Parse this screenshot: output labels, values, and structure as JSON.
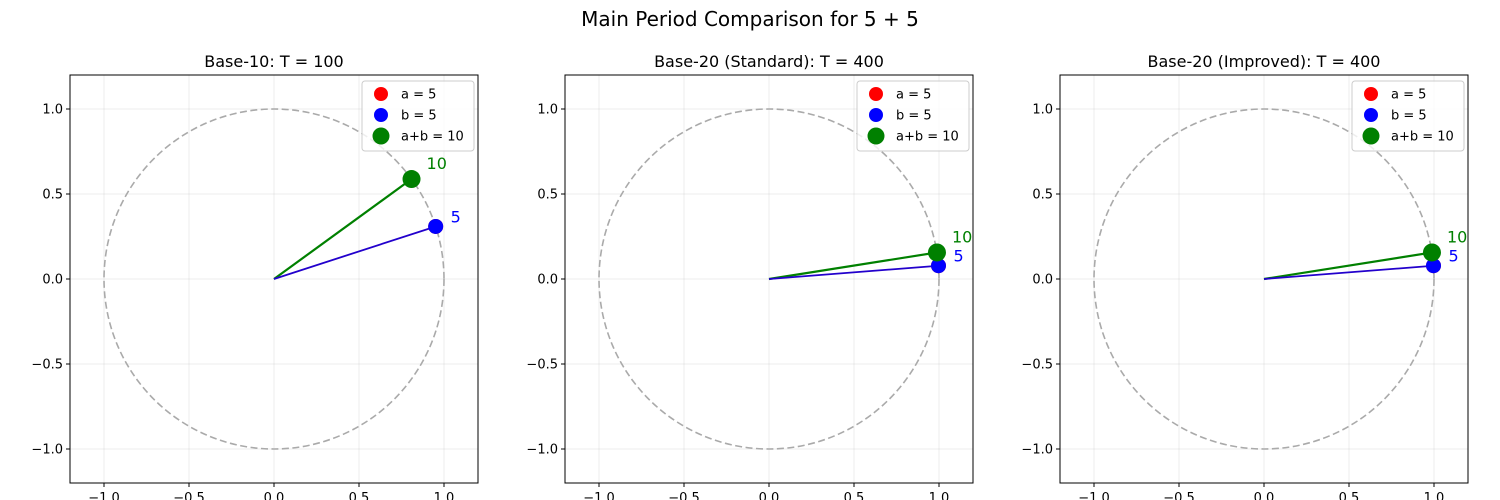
{
  "figure": {
    "title": "Main Period Comparison for 5 + 5"
  },
  "chart_data": [
    {
      "type": "scatter",
      "title": "Base-10: T = 100",
      "xlim": [
        -1.2,
        1.2
      ],
      "ylim": [
        -1.2,
        1.2
      ],
      "xticks": [
        -1.0,
        -0.5,
        0.0,
        0.5,
        1.0
      ],
      "yticks": [
        -1.0,
        -0.5,
        0.0,
        0.5,
        1.0
      ],
      "xtick_labels": [
        "−1.0",
        "−0.5",
        "0.0",
        "0.5",
        "1.0"
      ],
      "ytick_labels": [
        "−1.0",
        "−0.5",
        "0.0",
        "0.5",
        "1.0"
      ],
      "grid": true,
      "legend": "top-right",
      "unit_circle": true,
      "series": [
        {
          "name": "a = 5",
          "color": "#ff0000",
          "x": 0.951,
          "y": 0.309
        },
        {
          "name": "b = 5",
          "color": "#0000ff",
          "x": 0.951,
          "y": 0.309,
          "label": "5"
        },
        {
          "name": "a+b = 10",
          "color": "#008000",
          "x": 0.809,
          "y": 0.588,
          "label": "10"
        }
      ]
    },
    {
      "type": "scatter",
      "title": "Base-20 (Standard): T = 400",
      "xlim": [
        -1.2,
        1.2
      ],
      "ylim": [
        -1.2,
        1.2
      ],
      "xticks": [
        -1.0,
        -0.5,
        0.0,
        0.5,
        1.0
      ],
      "yticks": [
        -1.0,
        -0.5,
        0.0,
        0.5,
        1.0
      ],
      "xtick_labels": [
        "−1.0",
        "−0.5",
        "0.0",
        "0.5",
        "1.0"
      ],
      "ytick_labels": [
        "−1.0",
        "−0.5",
        "0.0",
        "0.5",
        "1.0"
      ],
      "grid": true,
      "legend": "top-right",
      "unit_circle": true,
      "series": [
        {
          "name": "a = 5",
          "color": "#ff0000",
          "x": 0.997,
          "y": 0.078
        },
        {
          "name": "b = 5",
          "color": "#0000ff",
          "x": 0.997,
          "y": 0.078,
          "label": "5"
        },
        {
          "name": "a+b = 10",
          "color": "#008000",
          "x": 0.988,
          "y": 0.156,
          "label": "10"
        }
      ]
    },
    {
      "type": "scatter",
      "title": "Base-20 (Improved): T = 400",
      "xlim": [
        -1.2,
        1.2
      ],
      "ylim": [
        -1.2,
        1.2
      ],
      "xticks": [
        -1.0,
        -0.5,
        0.0,
        0.5,
        1.0
      ],
      "yticks": [
        -1.0,
        -0.5,
        0.0,
        0.5,
        1.0
      ],
      "xtick_labels": [
        "−1.0",
        "−0.5",
        "0.0",
        "0.5",
        "1.0"
      ],
      "ytick_labels": [
        "−1.0",
        "−0.5",
        "0.0",
        "0.5",
        "1.0"
      ],
      "grid": true,
      "legend": "top-right",
      "unit_circle": true,
      "series": [
        {
          "name": "a = 5",
          "color": "#ff0000",
          "x": 0.997,
          "y": 0.078
        },
        {
          "name": "b = 5",
          "color": "#0000ff",
          "x": 0.997,
          "y": 0.078,
          "label": "5"
        },
        {
          "name": "a+b = 10",
          "color": "#008000",
          "x": 0.988,
          "y": 0.156,
          "label": "10"
        }
      ]
    }
  ]
}
